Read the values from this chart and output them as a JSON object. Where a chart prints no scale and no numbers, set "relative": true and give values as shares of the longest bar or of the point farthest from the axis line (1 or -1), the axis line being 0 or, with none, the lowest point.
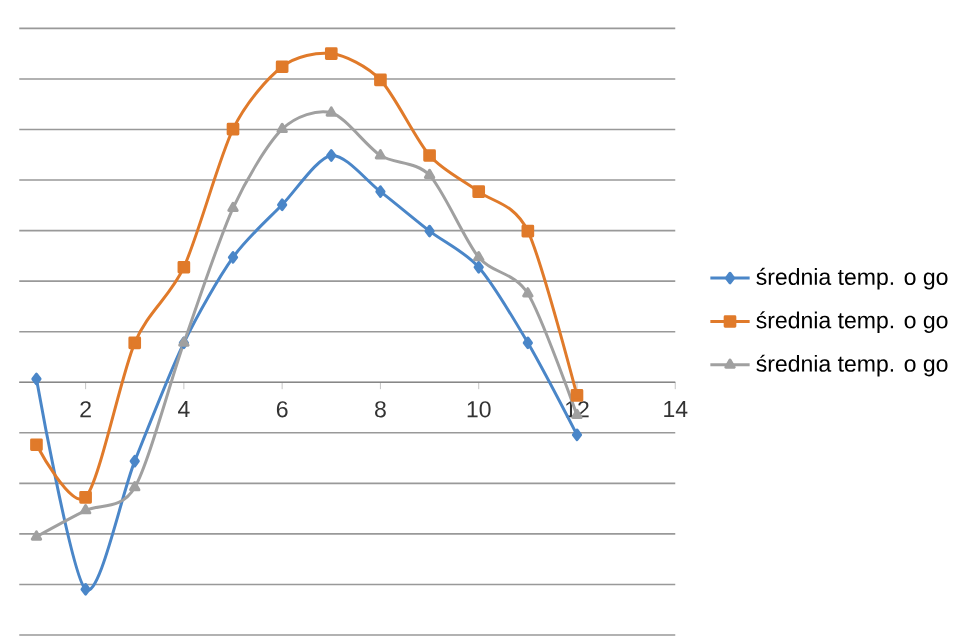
{
  "chart_data": {
    "type": "line",
    "relative": true,
    "x": [
      1,
      2,
      3,
      4,
      5,
      6,
      7,
      8,
      9,
      10,
      11,
      12
    ],
    "xlim": [
      0.65,
      14
    ],
    "xticks": [
      2,
      4,
      6,
      8,
      10,
      12,
      14
    ],
    "grid": "y",
    "legend": "right",
    "series": [
      {
        "name": "średnia temp. o go",
        "color": "#4a86c8",
        "marker": "diamond",
        "values": [
          0.01,
          -0.63,
          -0.24,
          0.12,
          0.38,
          0.54,
          0.69,
          0.58,
          0.46,
          0.35,
          0.12,
          -0.16
        ]
      },
      {
        "name": "średnia temp. o go",
        "color": "#e07a2a",
        "marker": "square",
        "values": [
          -0.19,
          -0.35,
          0.12,
          0.35,
          0.77,
          0.96,
          1,
          0.92,
          0.69,
          0.58,
          0.46,
          -0.04
        ]
      },
      {
        "name": "średnia temp. o go",
        "color": "#a0a0a0",
        "marker": "triangle",
        "values": [
          -0.47,
          -0.39,
          -0.32,
          0.12,
          0.53,
          0.77,
          0.82,
          0.69,
          0.63,
          0.38,
          0.27,
          -0.1
        ]
      }
    ]
  }
}
